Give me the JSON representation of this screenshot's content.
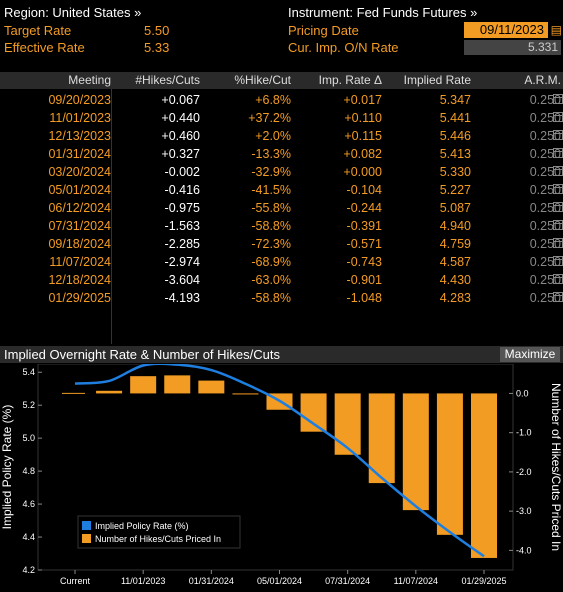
{
  "header": {
    "region": "Region: United States »",
    "instrument": "Instrument: Fed Funds Futures »",
    "target_label": "Target Rate",
    "target_value": "5.50",
    "effective_label": "Effective Rate",
    "effective_value": "5.33",
    "pricing_label": "Pricing Date",
    "pricing_date": "09/11/2023",
    "cur_label": "Cur. Imp. O/N Rate",
    "cur_value": "5.331"
  },
  "table": {
    "headers": [
      "Meeting",
      "#Hikes/Cuts",
      "%Hike/Cut",
      "Imp. Rate Δ",
      "Implied Rate",
      "A.R.M."
    ],
    "rows": [
      [
        "09/20/2023",
        "+0.067",
        "+6.8%",
        "+0.017",
        "5.347",
        "0.250"
      ],
      [
        "11/01/2023",
        "+0.440",
        "+37.2%",
        "+0.110",
        "5.441",
        "0.250"
      ],
      [
        "12/13/2023",
        "+0.460",
        "+2.0%",
        "+0.115",
        "5.446",
        "0.250"
      ],
      [
        "01/31/2024",
        "+0.327",
        "-13.3%",
        "+0.082",
        "5.413",
        "0.250"
      ],
      [
        "03/20/2024",
        "-0.002",
        "-32.9%",
        "+0.000",
        "5.330",
        "0.250"
      ],
      [
        "05/01/2024",
        "-0.416",
        "-41.5%",
        "-0.104",
        "5.227",
        "0.250"
      ],
      [
        "06/12/2024",
        "-0.975",
        "-55.8%",
        "-0.244",
        "5.087",
        "0.250"
      ],
      [
        "07/31/2024",
        "-1.563",
        "-58.8%",
        "-0.391",
        "4.940",
        "0.250"
      ],
      [
        "09/18/2024",
        "-2.285",
        "-72.3%",
        "-0.571",
        "4.759",
        "0.250"
      ],
      [
        "11/07/2024",
        "-2.974",
        "-68.9%",
        "-0.743",
        "4.587",
        "0.250"
      ],
      [
        "12/18/2024",
        "-3.604",
        "-63.0%",
        "-0.901",
        "4.430",
        "0.250"
      ],
      [
        "01/29/2025",
        "-4.193",
        "-58.8%",
        "-1.048",
        "4.283",
        "0.250"
      ]
    ]
  },
  "chart_panel": {
    "title": "Implied Overnight Rate & Number of Hikes/Cuts",
    "maximize_label": "Maximize"
  },
  "chart_data": {
    "type": "bar",
    "x": [
      "Current",
      "09/20/2023",
      "11/01/2023",
      "12/13/2023",
      "01/31/2024",
      "03/20/2024",
      "05/01/2024",
      "06/12/2024",
      "07/31/2024",
      "09/18/2024",
      "11/07/2024",
      "12/18/2024",
      "01/29/2025"
    ],
    "x_tick_labels": [
      "Current",
      "11/01/2023",
      "01/31/2024",
      "05/01/2024",
      "07/31/2024",
      "11/07/2024",
      "01/29/2025"
    ],
    "series": [
      {
        "name": "Implied Policy Rate (%)",
        "type": "line",
        "axis": "left",
        "color": "#1e7fe0",
        "values": [
          5.331,
          5.347,
          5.441,
          5.446,
          5.413,
          5.33,
          5.227,
          5.087,
          4.94,
          4.759,
          4.587,
          4.43,
          4.283
        ]
      },
      {
        "name": "Number of Hikes/Cuts Priced In",
        "type": "bar",
        "axis": "right",
        "color": "#f39c24",
        "values": [
          null,
          0.067,
          0.44,
          0.46,
          0.327,
          -0.002,
          -0.416,
          -0.975,
          -1.563,
          -2.285,
          -2.974,
          -3.604,
          -4.193
        ]
      }
    ],
    "ylabel_left": "Implied Policy Rate (%)",
    "ylabel_right": "Number of Hikes/Cuts Priced In",
    "ylim_left": [
      4.2,
      5.45
    ],
    "yticks_left": [
      "4.2",
      "4.4",
      "4.6",
      "4.8",
      "5.0",
      "5.2",
      "5.4"
    ],
    "ylim_right": [
      -4.5,
      0.75
    ],
    "yticks_right": [
      "0.0",
      "-1.0",
      "-2.0",
      "-3.0",
      "-4.0"
    ],
    "legend_position": "bottom-left",
    "grid": false
  }
}
